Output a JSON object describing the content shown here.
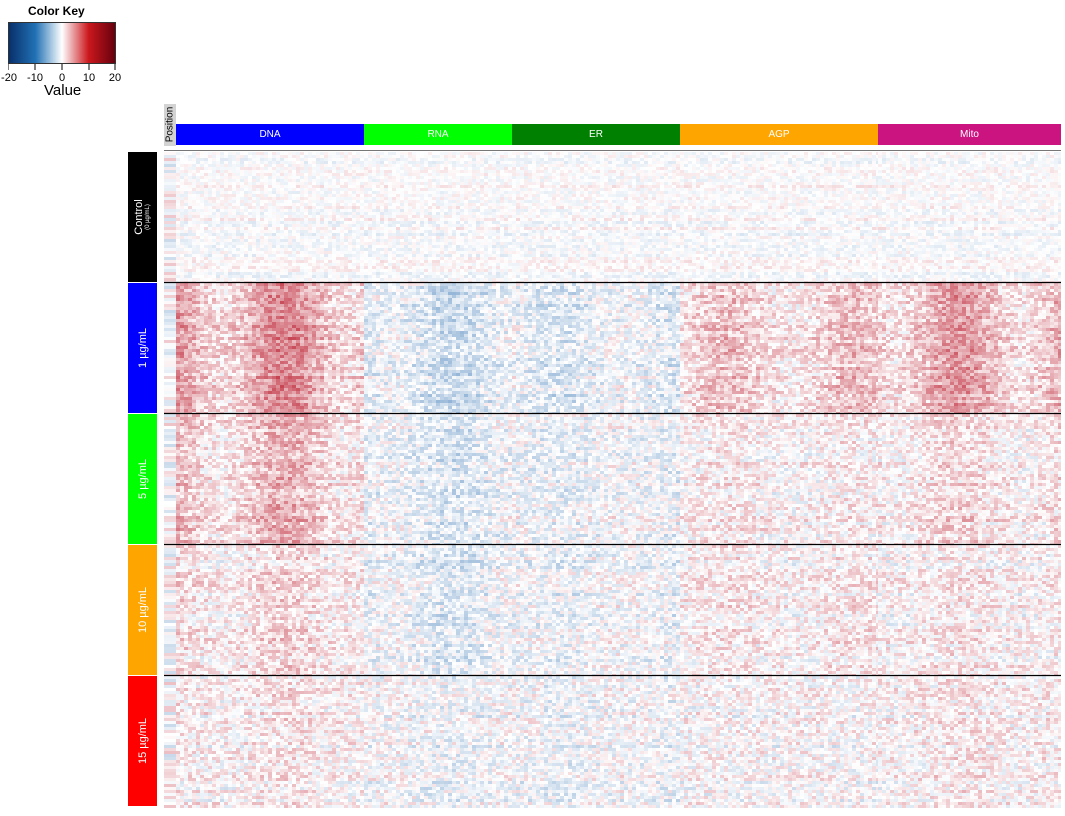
{
  "color_key": {
    "title": "Color Key",
    "axis_label": "Value",
    "ticks": [
      "-20",
      "-10",
      "0",
      "10",
      "20"
    ],
    "range": [
      -20,
      20
    ],
    "colors": [
      "#08306b",
      "#2171b5",
      "#ffffff",
      "#cb181d",
      "#67000d"
    ]
  },
  "position_label": "Position",
  "column_groups": [
    {
      "label": "DNA",
      "color": "#0000ff"
    },
    {
      "label": "RNA",
      "color": "#00ff00"
    },
    {
      "label": "ER",
      "color": "#008000"
    },
    {
      "label": "AGP",
      "color": "#ffa500"
    },
    {
      "label": "Mito",
      "color": "#cc1480"
    }
  ],
  "row_groups": [
    {
      "label": "Control",
      "sublabel": "(0 µg/mL)",
      "color": "#000000"
    },
    {
      "label": "1 µg/mL",
      "sublabel": "",
      "color": "#0000ff"
    },
    {
      "label": "5 µg/mL",
      "sublabel": "",
      "color": "#00ff00"
    },
    {
      "label": "10 µg/mL",
      "sublabel": "",
      "color": "#ffa500"
    },
    {
      "label": "15 µg/mL",
      "sublabel": "",
      "color": "#ff0000"
    }
  ],
  "chart_data": {
    "type": "heatmap",
    "title": "",
    "xlabel": "",
    "ylabel": "",
    "value_range": [
      -20,
      20
    ],
    "legend": "top-left",
    "column_groups": [
      "DNA",
      "RNA",
      "ER",
      "AGP",
      "Mito"
    ],
    "row_groups": [
      "Control",
      "1 µg/mL",
      "5 µg/mL",
      "10 µg/mL",
      "15 µg/mL"
    ],
    "group_mean_values": [
      [
        0,
        0,
        0,
        0,
        0
      ],
      [
        6,
        -3,
        -2,
        3,
        5
      ],
      [
        4,
        -2,
        -1,
        1,
        2
      ],
      [
        2,
        -2,
        -1,
        1,
        1
      ],
      [
        1,
        -1,
        -1,
        0,
        1
      ]
    ]
  }
}
